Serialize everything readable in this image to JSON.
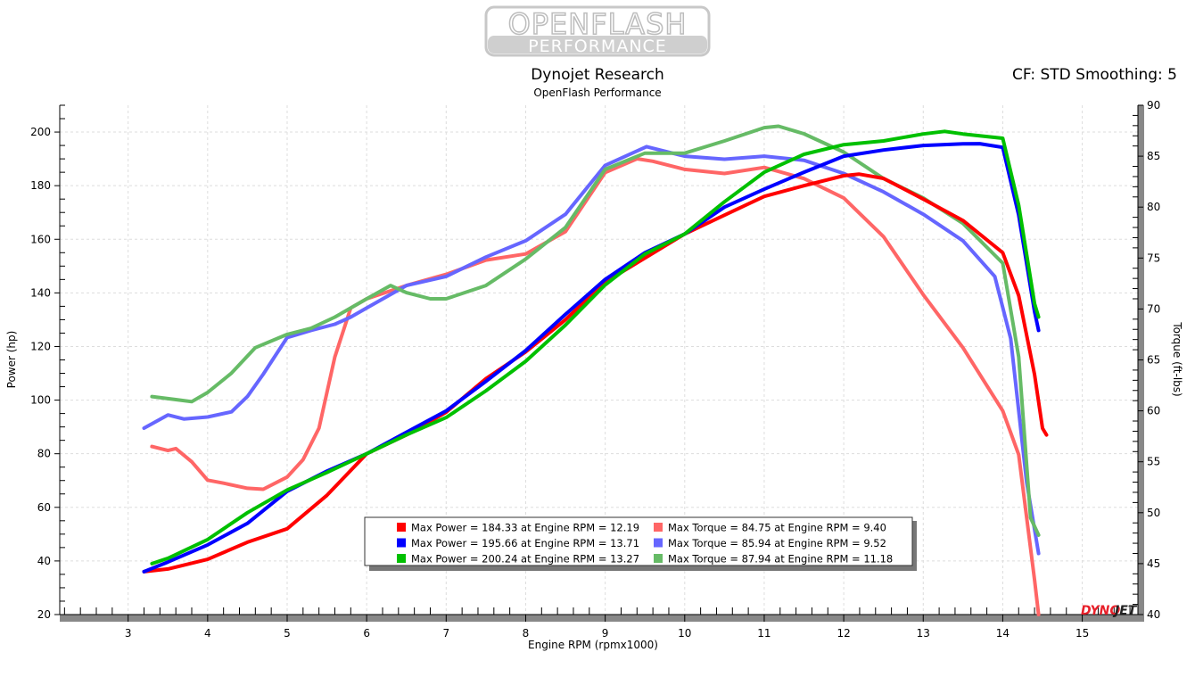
{
  "logo": {
    "line1": "OPENFLASH",
    "line2": "PERFORMANCE"
  },
  "header": {
    "title": "Dynojet Research",
    "subtitle": "OpenFlash Performance",
    "right_info": "CF: STD Smoothing: 5"
  },
  "watermark": {
    "brand": "DYNOJET",
    "colors": [
      "#e8202a",
      "#222222"
    ]
  },
  "chart_data": {
    "type": "line",
    "title": "Dynojet Research",
    "subtitle": "OpenFlash Performance",
    "xlabel": "Engine RPM (rpmx1000)",
    "ylabel": "Power (hp)",
    "y2label": "Torque (ft-lbs)",
    "xlim": [
      2.14,
      15.7
    ],
    "ylim": [
      20,
      210
    ],
    "y2lim": [
      40,
      90
    ],
    "xticks": [
      3,
      4,
      5,
      6,
      7,
      8,
      9,
      10,
      11,
      12,
      13,
      14,
      15
    ],
    "yticks": [
      20,
      40,
      60,
      80,
      100,
      120,
      140,
      160,
      180,
      200
    ],
    "y2ticks": [
      40,
      45,
      50,
      55,
      60,
      65,
      70,
      75,
      80,
      85,
      90
    ],
    "grid": true,
    "legend_position": "bottom-center",
    "series": [
      {
        "axis": "left",
        "color": "#ff0000",
        "x": [
          3.2,
          3.5,
          4,
          4.5,
          5,
          5.5,
          6,
          6.5,
          7,
          7.5,
          8,
          8.5,
          9,
          9.5,
          10,
          10.5,
          11,
          11.5,
          12,
          12.19,
          12.5,
          13,
          13.5,
          14,
          14.2,
          14.4,
          14.5,
          14.55
        ],
        "y": [
          36,
          37,
          40.6,
          47,
          52,
          64.5,
          80,
          87,
          95.5,
          108,
          118,
          130,
          144,
          153,
          162,
          169,
          176,
          180,
          183.7,
          184.3,
          182.7,
          175,
          167,
          155,
          139,
          109.5,
          89.5,
          87
        ]
      },
      {
        "axis": "left",
        "color": "#0000ff",
        "x": [
          3.2,
          3.5,
          4,
          4.5,
          5,
          5.5,
          6,
          6.5,
          7,
          7.5,
          8,
          8.5,
          9,
          9.5,
          10,
          10.5,
          11,
          11.5,
          12,
          12.5,
          13,
          13.5,
          13.71,
          14,
          14.2,
          14.4,
          14.45
        ],
        "y": [
          36,
          39.6,
          46,
          54,
          66,
          73.5,
          80,
          88,
          96,
          107,
          118.5,
          132,
          145,
          155,
          162,
          172,
          178.7,
          185,
          191,
          193.3,
          195,
          195.6,
          195.66,
          194.3,
          169,
          133,
          126
        ]
      },
      {
        "axis": "left",
        "color": "#00c000",
        "x": [
          3.3,
          3.5,
          4,
          4.5,
          5,
          5.5,
          6,
          6.5,
          7,
          7.5,
          8,
          8.5,
          9,
          9.5,
          10,
          10.5,
          11,
          11.5,
          12,
          12.5,
          13,
          13.27,
          13.5,
          14,
          14.2,
          14.4,
          14.45
        ],
        "y": [
          39,
          41,
          48,
          58,
          66.5,
          73,
          80,
          87,
          93.5,
          103.5,
          114.5,
          128,
          143,
          154.5,
          162,
          174,
          185,
          191.7,
          195.3,
          196.7,
          199.3,
          200.24,
          199.3,
          197.7,
          172.7,
          136,
          131
        ]
      },
      {
        "axis": "right",
        "color": "#ff6666",
        "x": [
          3.3,
          3.5,
          3.6,
          3.8,
          4,
          4.2,
          4.5,
          4.7,
          5,
          5.2,
          5.4,
          5.6,
          5.8,
          6,
          6.5,
          7,
          7.5,
          8,
          8.5,
          9,
          9.4,
          9.6,
          10,
          10.5,
          11,
          11.5,
          12,
          12.5,
          13,
          13.5,
          14,
          14.2,
          14.4,
          14.45
        ],
        "y": [
          56.5,
          56.1,
          56.3,
          55,
          53.2,
          52.9,
          52.4,
          52.3,
          53.5,
          55.2,
          58.3,
          65.3,
          70.1,
          71,
          72.3,
          73.4,
          74.8,
          75.4,
          77.6,
          83.4,
          84.75,
          84.5,
          83.7,
          83.3,
          83.9,
          82.8,
          80.9,
          77.1,
          71.4,
          66.2,
          60,
          55.7,
          43.4,
          40
        ]
      },
      {
        "axis": "right",
        "color": "#6666ff",
        "x": [
          3.2,
          3.5,
          3.7,
          4,
          4.3,
          4.5,
          4.7,
          5,
          5.3,
          5.6,
          5.8,
          6,
          6.5,
          7,
          7.5,
          8,
          8.5,
          9,
          9.52,
          10,
          10.5,
          11,
          11.5,
          12,
          12.5,
          13,
          13.5,
          13.9,
          14.1,
          14.3,
          14.45
        ],
        "y": [
          58.3,
          59.6,
          59.2,
          59.4,
          59.9,
          61.4,
          63.6,
          67.2,
          67.9,
          68.5,
          69.2,
          70.1,
          72.3,
          73.2,
          75.1,
          76.7,
          79.3,
          84.1,
          85.94,
          85,
          84.7,
          85,
          84.6,
          83.3,
          81.5,
          79.3,
          76.7,
          73.2,
          67.1,
          53,
          46
        ]
      },
      {
        "axis": "right",
        "color": "#66bb66",
        "x": [
          3.3,
          3.6,
          3.8,
          4,
          4.3,
          4.6,
          5,
          5.3,
          5.6,
          6,
          6.3,
          6.5,
          6.8,
          7,
          7.5,
          8,
          8.5,
          9,
          9.5,
          10,
          10.5,
          11,
          11.18,
          11.5,
          12,
          12.5,
          13,
          13.5,
          14,
          14.2,
          14.35,
          14.45
        ],
        "y": [
          61.4,
          61.1,
          60.9,
          61.8,
          63.7,
          66.2,
          67.5,
          68.1,
          69.2,
          71,
          72.3,
          71.6,
          71,
          71,
          72.3,
          74.9,
          78,
          83.7,
          85.3,
          85.3,
          86.5,
          87.8,
          87.94,
          87.2,
          85.4,
          82.8,
          80.9,
          78.4,
          74.5,
          65.3,
          49.5,
          47.8
        ]
      }
    ],
    "legend": [
      {
        "color": "#ff0000",
        "text": "Max Power = 184.33 at Engine RPM = 12.19"
      },
      {
        "color": "#ff6666",
        "text": "Max Torque = 84.75 at Engine RPM = 9.40"
      },
      {
        "color": "#0000ff",
        "text": "Max Power = 195.66 at Engine RPM = 13.71"
      },
      {
        "color": "#6666ff",
        "text": "Max Torque = 85.94 at Engine RPM = 9.52"
      },
      {
        "color": "#00c000",
        "text": "Max Power = 200.24 at Engine RPM = 13.27"
      },
      {
        "color": "#66bb66",
        "text": "Max Torque = 87.94 at Engine RPM = 11.18"
      }
    ]
  }
}
